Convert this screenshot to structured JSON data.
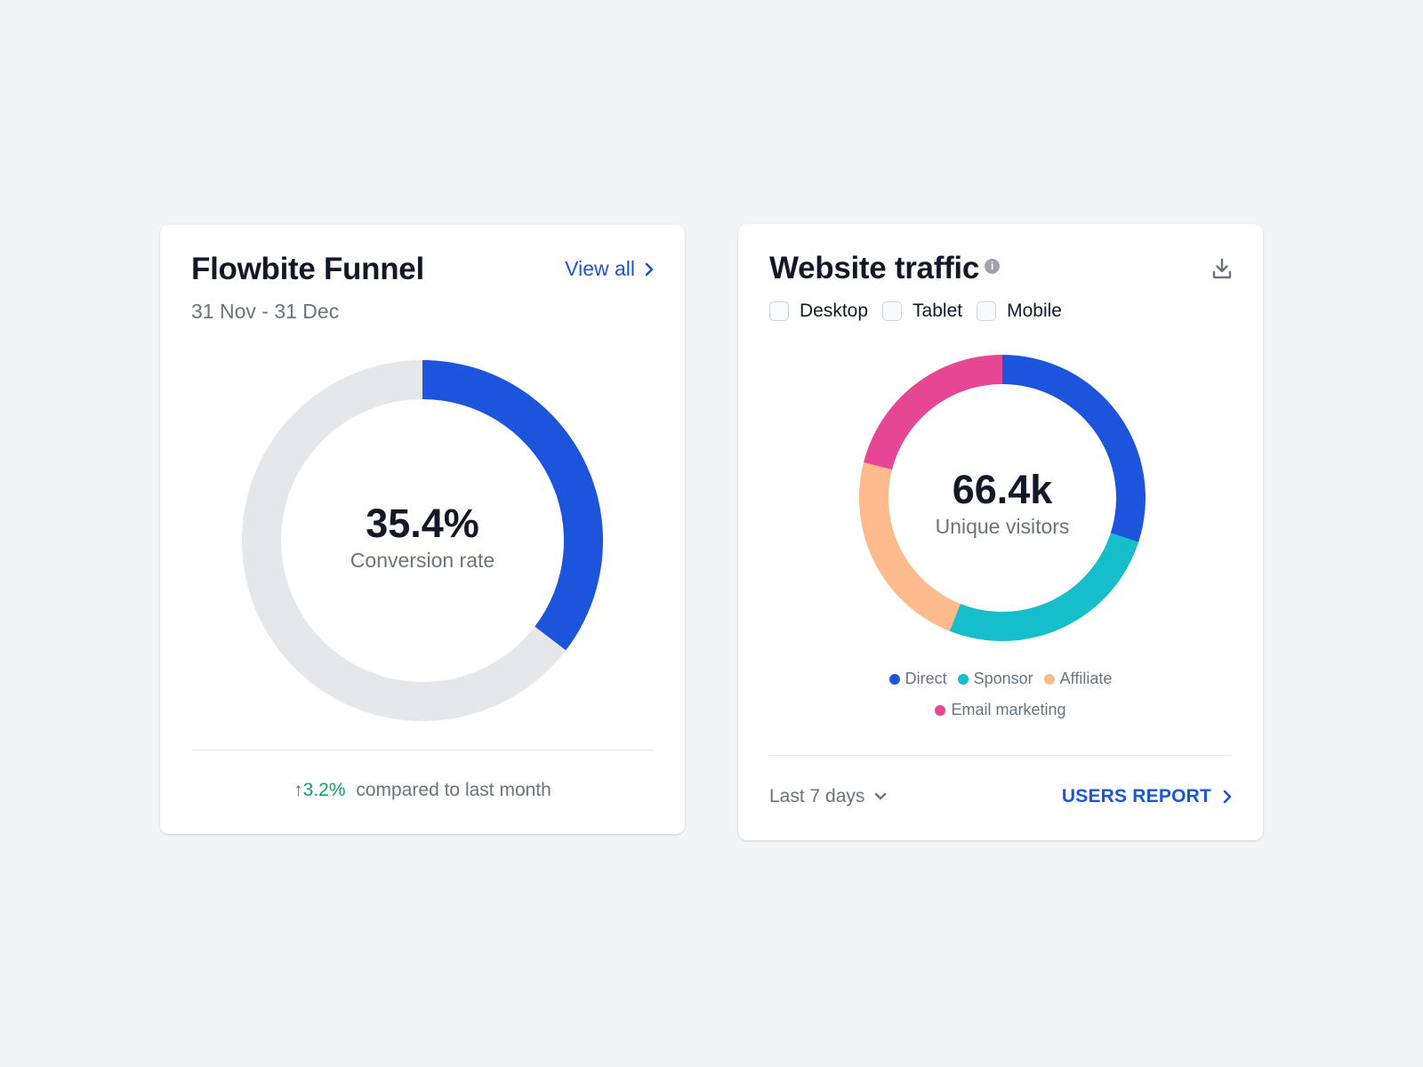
{
  "funnel": {
    "title": "Flowbite Funnel",
    "date_range": "31 Nov - 31 Dec",
    "view_all_label": "View all",
    "value_label": "35.4%",
    "center_caption": "Conversion rate",
    "trend_value": "3.2%",
    "trend_caption": "compared to last month",
    "trend_arrow": "↑",
    "colors": {
      "fill": "#1c54db",
      "track": "#e5e7eb",
      "trend": "#0e9f6e"
    }
  },
  "traffic": {
    "title": "Website traffic",
    "info_icon": "i",
    "checkboxes": [
      "Desktop",
      "Tablet",
      "Mobile"
    ],
    "value_label": "66.4k",
    "center_caption": "Unique visitors",
    "range_label": "Last 7 days",
    "report_label": "USERS REPORT",
    "legend": [
      {
        "label": "Direct",
        "color": "#1c54db"
      },
      {
        "label": "Sponsor",
        "color": "#16bdca"
      },
      {
        "label": "Affiliate",
        "color": "#fdba8c"
      },
      {
        "label": "Email marketing",
        "color": "#e74694"
      }
    ]
  },
  "chart_data": [
    {
      "type": "pie",
      "categories": [
        "Conversion",
        "Remaining"
      ],
      "values": [
        35.4,
        64.6
      ],
      "colors": [
        "#1c54db",
        "#e5e7eb"
      ]
    },
    {
      "type": "pie",
      "categories": [
        "Direct",
        "Sponsor",
        "Affiliate",
        "Email marketing"
      ],
      "values": [
        30,
        26,
        23,
        21
      ],
      "colors": [
        "#1c54db",
        "#16bdca",
        "#fdba8c",
        "#e74694"
      ]
    }
  ]
}
